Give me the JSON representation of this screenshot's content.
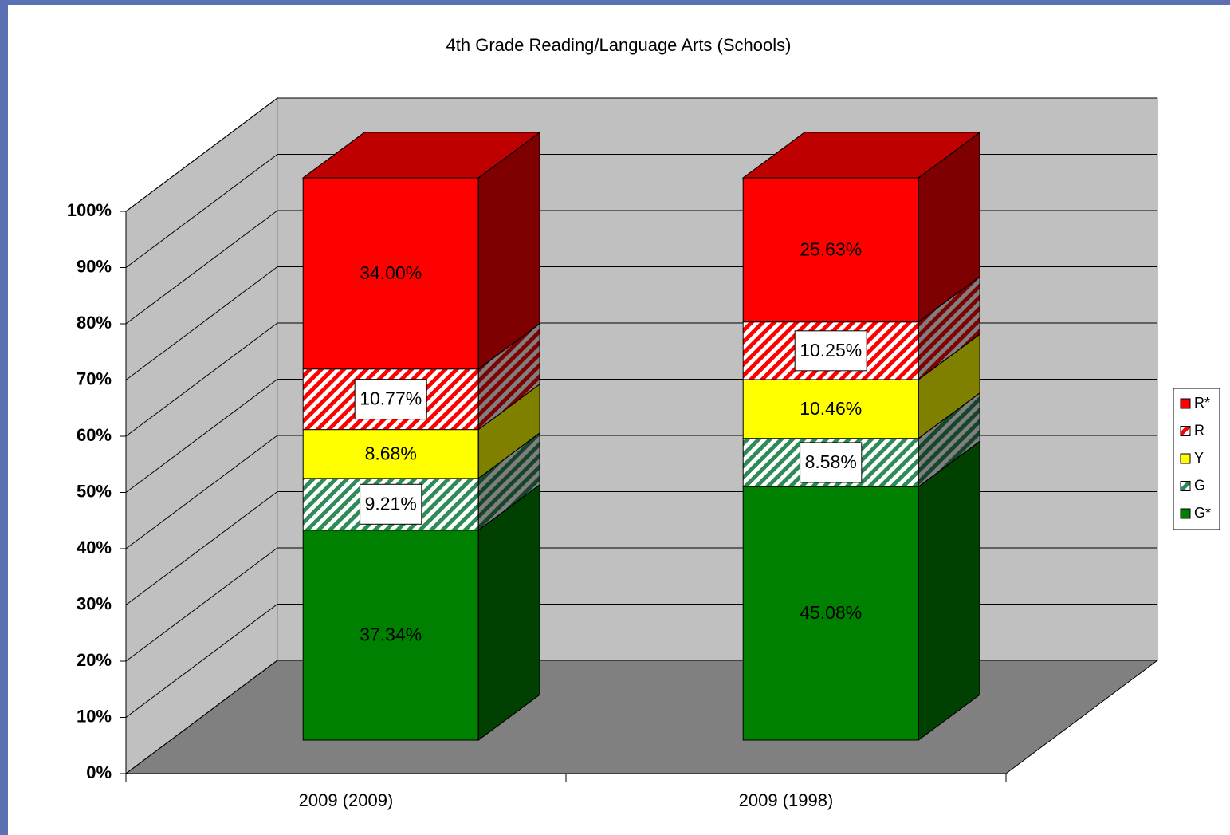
{
  "chart_data": {
    "type": "bar3d_stacked",
    "title": "4th Grade Reading/Language Arts (Schools)",
    "categories": [
      "2009 (2009)",
      "2009 (1998)"
    ],
    "series": [
      {
        "name": "G*",
        "color": "#008000",
        "pattern": "solid",
        "values": [
          37.34,
          45.08
        ],
        "value_labels": [
          "37.34%",
          "45.08%"
        ]
      },
      {
        "name": "G",
        "color": "#2e8b57",
        "pattern": "hatch",
        "values": [
          9.21,
          8.58
        ],
        "value_labels": [
          "9.21%",
          "8.58%"
        ]
      },
      {
        "name": "Y",
        "color": "#ffff00",
        "pattern": "solid",
        "values": [
          8.68,
          10.46
        ],
        "value_labels": [
          "8.68%",
          "10.46%"
        ]
      },
      {
        "name": "R",
        "color": "#ff0000",
        "pattern": "hatch",
        "values": [
          10.77,
          10.25
        ],
        "value_labels": [
          "10.77%",
          "10.25%"
        ]
      },
      {
        "name": "R*",
        "color": "#ff0000",
        "pattern": "solid",
        "values": [
          34.0,
          25.63
        ],
        "value_labels": [
          "34.00%",
          "25.63%"
        ]
      }
    ],
    "ylim": [
      0,
      100
    ],
    "yticks": [
      {
        "value": 0,
        "label": "0%"
      },
      {
        "value": 10,
        "label": "10%"
      },
      {
        "value": 20,
        "label": "20%"
      },
      {
        "value": 30,
        "label": "30%"
      },
      {
        "value": 40,
        "label": "40%"
      },
      {
        "value": 50,
        "label": "50%"
      },
      {
        "value": 60,
        "label": "60%"
      },
      {
        "value": 70,
        "label": "70%"
      },
      {
        "value": 80,
        "label": "80%"
      },
      {
        "value": 90,
        "label": "90%"
      },
      {
        "value": 100,
        "label": "100%"
      }
    ],
    "grid": true,
    "legend": "right"
  }
}
